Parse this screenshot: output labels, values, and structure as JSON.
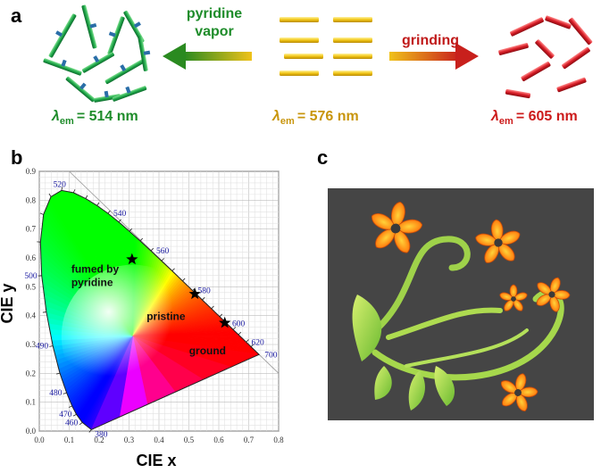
{
  "panel_a": {
    "letter": "a",
    "arrow_left_label_line1": "pyridine",
    "arrow_left_label_line2": "vapor",
    "arrow_right_label": "grinding",
    "states": [
      {
        "lambda_symbol": "λ",
        "subscript": "em",
        "value_text": "= 514 nm",
        "color": "#1e8c2a"
      },
      {
        "lambda_symbol": "λ",
        "subscript": "em",
        "value_text": "= 576 nm",
        "color": "#c8950c"
      },
      {
        "lambda_symbol": "λ",
        "subscript": "em",
        "value_text": "= 605 nm",
        "color": "#cc1a1a"
      }
    ]
  },
  "panel_b": {
    "letter": "b",
    "chart_data": {
      "type": "scatter",
      "xlabel": "CIE x",
      "ylabel": "CIE y",
      "xlim": [
        0.0,
        0.8
      ],
      "ylim": [
        0.0,
        0.9
      ],
      "x_ticks": [
        "0.0",
        "0.1",
        "0.2",
        "0.3",
        "0.4",
        "0.5",
        "0.6",
        "0.7",
        "0.8"
      ],
      "y_ticks": [
        "0.0",
        "0.1",
        "0.2",
        "0.3",
        "0.4",
        "0.5",
        "0.6",
        "0.7",
        "0.8",
        "0.9"
      ],
      "grid": true,
      "wavelength_labels": [
        {
          "text": "380",
          "x": 0.174,
          "y": 0.005
        },
        {
          "text": "460",
          "x": 0.144,
          "y": 0.03
        },
        {
          "text": "470",
          "x": 0.124,
          "y": 0.058
        },
        {
          "text": "480",
          "x": 0.091,
          "y": 0.133
        },
        {
          "text": "490",
          "x": 0.045,
          "y": 0.295
        },
        {
          "text": "500",
          "x": 0.008,
          "y": 0.538
        },
        {
          "text": "520",
          "x": 0.074,
          "y": 0.834
        },
        {
          "text": "540",
          "x": 0.23,
          "y": 0.754
        },
        {
          "text": "560",
          "x": 0.373,
          "y": 0.624
        },
        {
          "text": "580",
          "x": 0.512,
          "y": 0.487
        },
        {
          "text": "600",
          "x": 0.627,
          "y": 0.372
        },
        {
          "text": "620",
          "x": 0.691,
          "y": 0.308
        },
        {
          "text": "700",
          "x": 0.735,
          "y": 0.265
        }
      ],
      "points": [
        {
          "label_line1": "fumed by",
          "label_line2": "pyridine",
          "x": 0.31,
          "y": 0.595
        },
        {
          "label_line1": "pristine",
          "label_line2": "",
          "x": 0.52,
          "y": 0.475
        },
        {
          "label_line1": "ground",
          "label_line2": "",
          "x": 0.62,
          "y": 0.375
        }
      ]
    }
  },
  "panel_c": {
    "letter": "c"
  },
  "colors": {
    "green": "#1e8c2a",
    "yellow": "#e8b90a",
    "red": "#d0202a",
    "dark_bg": "#454545"
  }
}
